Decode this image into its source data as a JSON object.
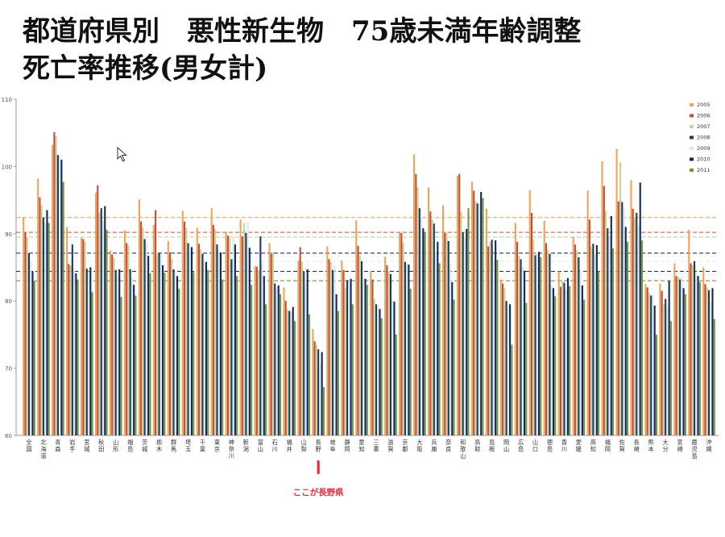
{
  "title": {
    "line1": "都道府県別　悪性新生物　75歳未満年齢調整",
    "line2": "死亡率推移(男女計)"
  },
  "annotation": {
    "text": "ここが長野県",
    "color": "#e0303a",
    "target": "長野"
  },
  "colors": {
    "2005": "#f0a25a",
    "2006": "#c0503e",
    "2007": "#c2d69b",
    "2008": "#1f3864",
    "2009": "#dce6f0",
    "2010": "#102a50",
    "2011": "#77933c"
  },
  "chart_data": {
    "type": "bar",
    "ylim": [
      60,
      110
    ],
    "yticks": [
      60,
      70,
      80,
      90,
      100,
      110
    ],
    "grid": false,
    "legend_position": "top-right",
    "categories": [
      "全国",
      "北海道",
      "青森",
      "岩手",
      "宮城",
      "秋田",
      "山形",
      "福島",
      "茨城",
      "栃木",
      "群馬",
      "埼玉",
      "千葉",
      "東京",
      "神奈川",
      "新潟",
      "富山",
      "石川",
      "福井",
      "山梨",
      "長野",
      "岐阜",
      "静岡",
      "愛知",
      "三重",
      "滋賀",
      "京都",
      "大阪",
      "兵庫",
      "奈良",
      "和歌山",
      "鳥取",
      "島根",
      "岡山",
      "広島",
      "山口",
      "徳島",
      "香川",
      "愛媛",
      "高知",
      "福岡",
      "佐賀",
      "長崎",
      "熊本",
      "大分",
      "宮崎",
      "鹿児島",
      "沖縄"
    ],
    "series": [
      {
        "name": "2005",
        "values": [
          92.4,
          98.2,
          103.2,
          91.0,
          89.4,
          96.1,
          87.5,
          90.5,
          95.1,
          91.3,
          88.9,
          93.4,
          90.9,
          93.8,
          90.3,
          92.1,
          85.2,
          88.6,
          82.0,
          86.0,
          75.8,
          88.1,
          86.0,
          92.0,
          84.5,
          86.6,
          90.2,
          101.8,
          96.9,
          94.2,
          98.6,
          97.7,
          93.7,
          83.2,
          91.6,
          96.5,
          91.9,
          84.4,
          89.5,
          96.4,
          100.8,
          102.6,
          98.0,
          82.5,
          82.6,
          85.6,
          90.6,
          85.0
        ]
      },
      {
        "name": "2006",
        "values": [
          90.2,
          95.4,
          105.1,
          85.5,
          89.2,
          97.2,
          86.9,
          88.6,
          91.8,
          93.5,
          87.2,
          91.8,
          88.5,
          91.3,
          89.7,
          89.6,
          85.1,
          87.0,
          80.0,
          88.0,
          74.0,
          86.2,
          84.6,
          88.2,
          83.2,
          85.3,
          90.1,
          98.9,
          93.3,
          90.1,
          98.9,
          96.4,
          88.1,
          82.6,
          88.8,
          93.1,
          88.6,
          82.1,
          88.4,
          92.1,
          97.1,
          94.8,
          93.7,
          82.0,
          81.5,
          83.7,
          85.6,
          82.5
        ]
      },
      {
        "name": "2007",
        "values": [
          89.5,
          94.2,
          104.5,
          85.3,
          88.8,
          93.2,
          86.4,
          88.3,
          90.9,
          87.0,
          86.3,
          90.9,
          87.7,
          90.7,
          89.4,
          91.6,
          84.6,
          87.2,
          78.8,
          85.8,
          73.5,
          85.8,
          82.0,
          86.8,
          80.3,
          84.4,
          88.7,
          96.9,
          92.1,
          90.2,
          93.3,
          94.9,
          88.8,
          81.9,
          86.7,
          89.2,
          87.6,
          83.0,
          87.5,
          88.1,
          93.4,
          100.6,
          92.4,
          81.2,
          79.5,
          83.6,
          85.3,
          82.0
        ]
      },
      {
        "name": "2008",
        "values": [
          87.1,
          92.4,
          101.7,
          88.4,
          84.8,
          93.8,
          84.6,
          84.7,
          89.2,
          87.1,
          84.7,
          88.6,
          87.0,
          88.4,
          86.2,
          90.1,
          89.6,
          82.6,
          78.5,
          84.4,
          72.8,
          84.6,
          83.1,
          85.9,
          79.5,
          84.0,
          85.8,
          93.8,
          91.5,
          88.9,
          90.2,
          94.5,
          89.1,
          80.0,
          86.2,
          86.8,
          87.0,
          82.7,
          86.5,
          88.5,
          90.8,
          94.7,
          93.1,
          80.8,
          80.3,
          83.2,
          85.9,
          81.6
        ]
      },
      {
        "name": "2009",
        "values": [
          85.9,
          91.6,
          101.6,
          84.8,
          84.4,
          91.9,
          84.0,
          83.5,
          88.6,
          86.8,
          84.1,
          88.3,
          85.6,
          87.5,
          89.6,
          91.7,
          85.6,
          82.1,
          78.3,
          82.5,
          70.8,
          85.2,
          82.9,
          83.7,
          79.3,
          80.2,
          85.6,
          92.4,
          87.4,
          85.6,
          89.3,
          94.6,
          86.2,
          79.3,
          85.0,
          87.2,
          82.2,
          81.7,
          84.7,
          86.9,
          89.6,
          94.1,
          91.1,
          81.0,
          79.1,
          83.5,
          84.2,
          79.9
        ]
      },
      {
        "name": "2010",
        "values": [
          84.4,
          93.5,
          101.0,
          84.1,
          85.0,
          94.1,
          84.7,
          82.4,
          86.7,
          85.3,
          83.7,
          88.0,
          85.8,
          87.2,
          88.4,
          87.9,
          83.7,
          82.3,
          79.1,
          84.7,
          72.4,
          81.0,
          83.3,
          83.3,
          78.8,
          79.9,
          85.4,
          90.8,
          88.8,
          82.8,
          90.7,
          96.2,
          89.0,
          79.5,
          84.5,
          87.3,
          81.9,
          83.4,
          82.3,
          88.3,
          92.6,
          91.0,
          97.6,
          79.3,
          83.0,
          81.9,
          83.7,
          81.9
        ]
      },
      {
        "name": "2011",
        "values": [
          83.0,
          91.6,
          97.7,
          83.2,
          81.3,
          90.6,
          80.6,
          80.8,
          84.1,
          84.2,
          81.8,
          84.3,
          84.6,
          83.2,
          83.7,
          82.4,
          79.5,
          81.0,
          77.0,
          78.0,
          67.2,
          78.5,
          79.5,
          82.4,
          77.4,
          75.0,
          81.8,
          90.2,
          85.6,
          80.2,
          93.8,
          95.3,
          86.1,
          73.5,
          79.7,
          86.5,
          80.7,
          82.2,
          80.2,
          84.4,
          87.8,
          88.8,
          89.0,
          75.0,
          77.0,
          81.0,
          82.8,
          77.3
        ]
      }
    ]
  }
}
